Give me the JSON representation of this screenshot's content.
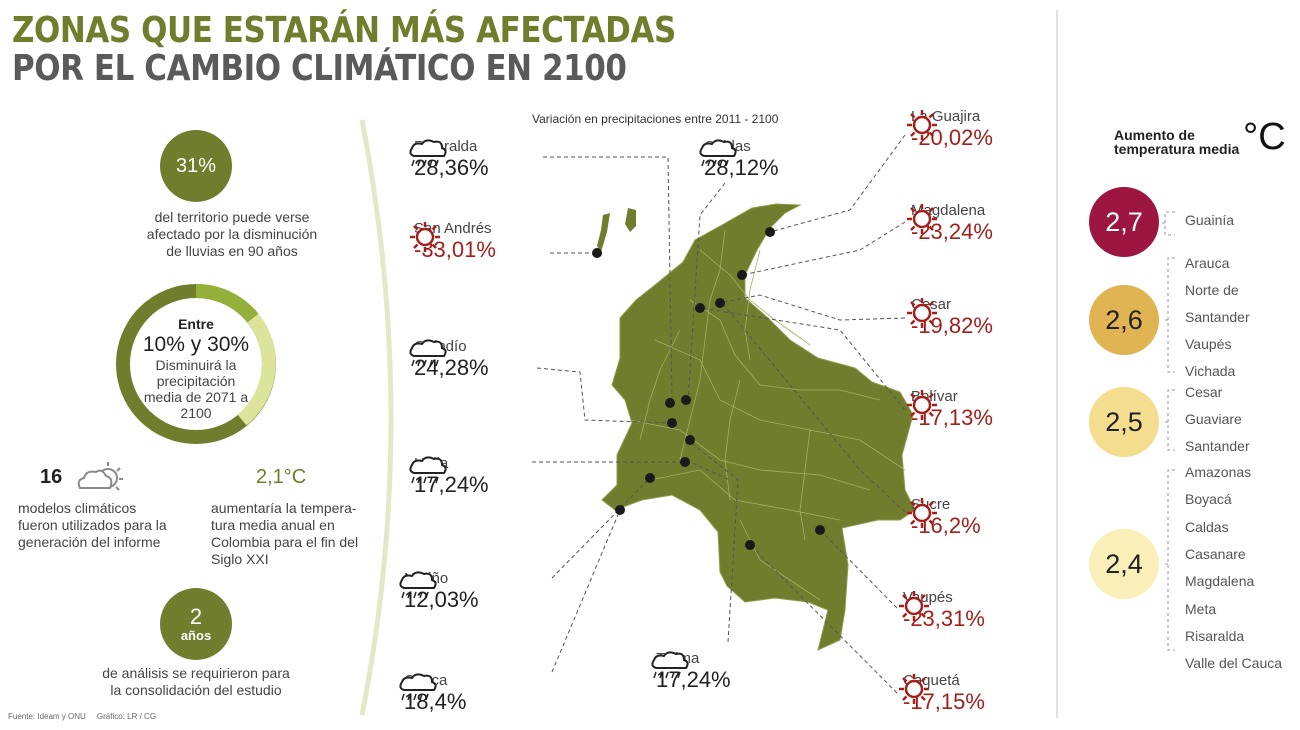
{
  "title": {
    "line1": "ZONAS QUE ESTARÁN MÁS AFECTADAS",
    "line2": "POR EL CAMBIO CLIMÁTICO EN 2100"
  },
  "left": {
    "stat1": {
      "value": "31%",
      "text": [
        "del territorio puede verse",
        "afectado por la disminución",
        "de lluvias en 90 años"
      ]
    },
    "ring": {
      "top": "Entre",
      "main": "10% y 30%",
      "text": [
        "Disminuirá la",
        "precipitación",
        "media de 2071 a",
        "2100"
      ]
    },
    "stat2": {
      "value": "16",
      "text": [
        "modelos climáticos",
        "fueron utilizados para la",
        "generación del informe"
      ]
    },
    "stat3": {
      "value": "2,1°C",
      "text": [
        "aumentaría la tempera-",
        "tura media anual en",
        "Colombia para el fin del",
        "Siglo XXI"
      ]
    },
    "stat4": {
      "value": "2",
      "unit": "años",
      "text": [
        "de análisis se requirieron para",
        "la consolidación del estudio"
      ]
    },
    "source": "Fuente: Ideam y ONU     Gráfico: LR / CG"
  },
  "map": {
    "subtitle": "Variación en precipitaciones entre 2011 - 2100",
    "regions": [
      {
        "name": "Risaralda",
        "value": "28,36%",
        "type": "rain"
      },
      {
        "name": "Caldas",
        "value": "28,12%",
        "type": "rain"
      },
      {
        "name": "San Andrés",
        "value": "-33,01%",
        "type": "sun"
      },
      {
        "name": "Quindío",
        "value": "24,28%",
        "type": "rain"
      },
      {
        "name": "Huila",
        "value": "17,24%",
        "type": "rain"
      },
      {
        "name": "Nariño",
        "value": "12,03%",
        "type": "rain"
      },
      {
        "name": "Cauca",
        "value": "18,4%",
        "type": "rain"
      },
      {
        "name": "Tolima",
        "value": "17,24%",
        "type": "rain"
      },
      {
        "name": "La Guajira",
        "value": "-20,02%",
        "type": "sun"
      },
      {
        "name": "Magdalena",
        "value": "-23,24%",
        "type": "sun"
      },
      {
        "name": "Cesar",
        "value": "-19,82%",
        "type": "sun"
      },
      {
        "name": "Bolívar",
        "value": "-17,13%",
        "type": "sun"
      },
      {
        "name": "Sucre",
        "value": "-16,2%",
        "type": "sun"
      },
      {
        "name": "Vaupés",
        "value": "-23,31%",
        "type": "sun"
      },
      {
        "name": "Caquetá",
        "value": "-17,15%",
        "type": "sun"
      }
    ]
  },
  "temperature": {
    "title": [
      "Aumento de",
      "temperatura media"
    ],
    "unit": "°C",
    "groups": [
      {
        "value": "2,7",
        "color": "#9c1640",
        "text_color": "#ffffff",
        "regions": [
          "Guainía"
        ]
      },
      {
        "value": "2,6",
        "color": "#e0b452",
        "text_color": "#222222",
        "regions": [
          "Arauca",
          "Norte de",
          "Santander",
          "Vaupés",
          "Vichada"
        ]
      },
      {
        "value": "2,5",
        "color": "#f4dd8e",
        "text_color": "#222222",
        "regions": [
          "Cesar",
          "Guaviare",
          "Santander"
        ]
      },
      {
        "value": "2,4",
        "color": "#faefb8",
        "text_color": "#222222",
        "regions": [
          "Amazonas",
          "Boyacá",
          "Caldas",
          "Casanare",
          "Magdalena",
          "Meta",
          "Risaralda",
          "Valle del Cauca"
        ]
      }
    ]
  }
}
